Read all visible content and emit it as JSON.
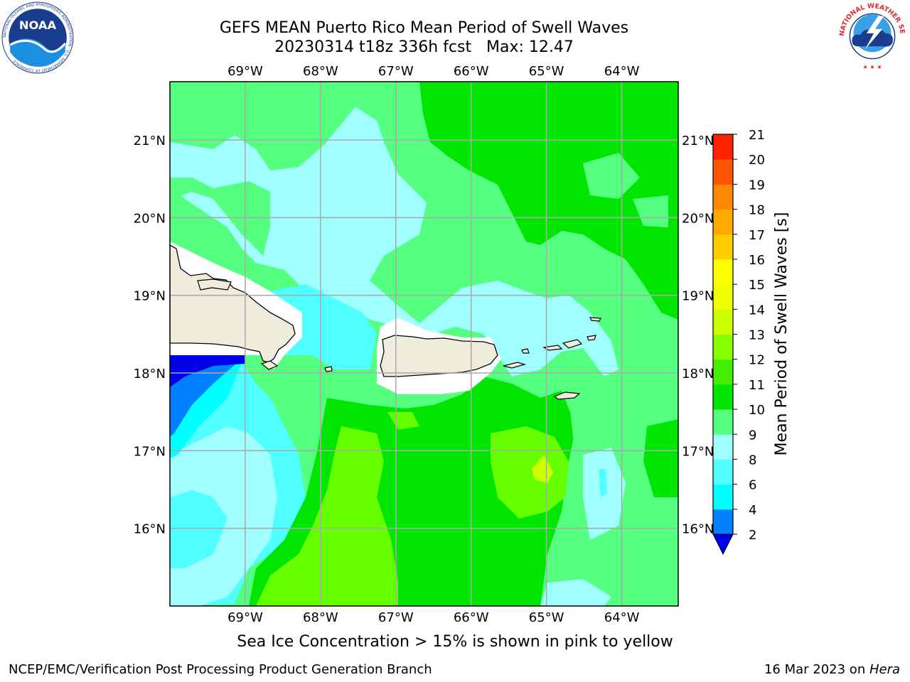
{
  "header": {
    "title_line1": "GEFS MEAN Puerto Rico Mean Period of Swell Waves",
    "title_line2": "20230314 t18z 336h fcst   Max: 12.47"
  },
  "logos": {
    "left": {
      "name": "noaa-logo",
      "text": "NOAA",
      "ring_text": "NATIONAL OCEANIC AND ATMOSPHERIC ADMINISTRATION · U.S. DEPARTMENT OF COMMERCE"
    },
    "right": {
      "name": "nws-logo",
      "ring_text": "NATIONAL WEATHER SERVICE"
    }
  },
  "map": {
    "lon_range": [
      -70.0,
      -63.25
    ],
    "lat_range": [
      15.0,
      21.75
    ],
    "lon_ticks": [
      {
        "value": -69,
        "label": "69°W"
      },
      {
        "value": -68,
        "label": "68°W"
      },
      {
        "value": -67,
        "label": "67°W"
      },
      {
        "value": -66,
        "label": "66°W"
      },
      {
        "value": -65,
        "label": "65°W"
      },
      {
        "value": -64,
        "label": "64°W"
      }
    ],
    "lat_ticks": [
      {
        "value": 21,
        "label": "21°N"
      },
      {
        "value": 20,
        "label": "20°N"
      },
      {
        "value": 19,
        "label": "19°N"
      },
      {
        "value": 18,
        "label": "18°N"
      },
      {
        "value": 17,
        "label": "17°N"
      },
      {
        "value": 16,
        "label": "16°N"
      }
    ],
    "grid": true,
    "land_color": "#efecdc",
    "colors": {
      "green_10_11": "#00e600",
      "light_green_9_10": "#55ff80",
      "light_cyan_8_9": "#a0ffff",
      "cyan_6_8": "#50ffff",
      "bright_cyan_4_6": "#00ffff",
      "blue_2_4": "#0080ff",
      "deep_blue_lt2": "#0000e6",
      "yellowgreen_11_12": "#66ff00",
      "yellow_12_13": "#ccff00",
      "land": "#efecdc"
    }
  },
  "colorbar": {
    "label": "Mean Period of Swell Waves [s]",
    "ticks": [
      "2",
      "4",
      "6",
      "8",
      "9",
      "10",
      "11",
      "12",
      "13",
      "14",
      "15",
      "16",
      "17",
      "18",
      "19",
      "20",
      "21"
    ],
    "colors": [
      "#0080ff",
      "#00ffff",
      "#50ffff",
      "#a0ffff",
      "#55ff80",
      "#00e600",
      "#44ee00",
      "#88ff00",
      "#ccff00",
      "#eeff00",
      "#ffff00",
      "#ffcc00",
      "#ffaa00",
      "#ff8800",
      "#ff5500",
      "#ff2200"
    ],
    "extend_color": "#0000e6"
  },
  "notes": {
    "ice": "Sea Ice Concentration > 15% is shown in pink to yellow"
  },
  "footer": {
    "left": "NCEP/EMC/Verification Post Processing Product Generation Branch",
    "right_date": "16 Mar 2023 on ",
    "right_machine": "Hera"
  }
}
